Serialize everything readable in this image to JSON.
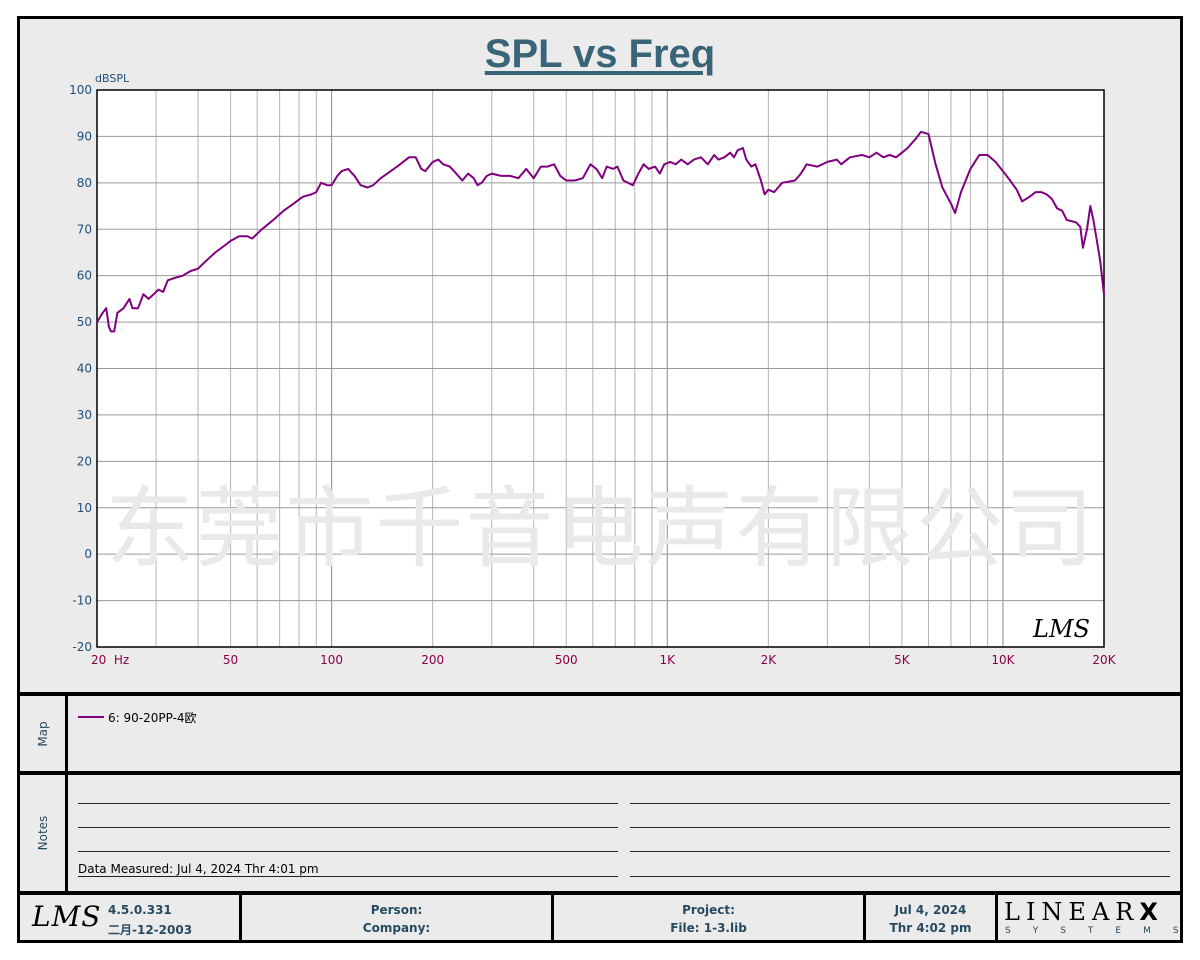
{
  "chart_data": {
    "type": "line",
    "title": "SPL vs Freq",
    "ylabel": "dBSPL",
    "xscale": "log",
    "xlim": [
      20,
      20000
    ],
    "ylim": [
      -20,
      100
    ],
    "grid": true,
    "y_ticks": [
      "100",
      "90",
      "80",
      "70",
      "60",
      "50",
      "40",
      "30",
      "20",
      "10",
      "0",
      "-10",
      "-20"
    ],
    "x_ticks": [
      {
        "f": 20,
        "label": "20  Hz"
      },
      {
        "f": 50,
        "label": "50"
      },
      {
        "f": 100,
        "label": "100"
      },
      {
        "f": 200,
        "label": "200"
      },
      {
        "f": 500,
        "label": "500"
      },
      {
        "f": 1000,
        "label": "1K"
      },
      {
        "f": 2000,
        "label": "2K"
      },
      {
        "f": 5000,
        "label": "5K"
      },
      {
        "f": 10000,
        "label": "10K"
      },
      {
        "f": 20000,
        "label": "20K"
      }
    ],
    "series": [
      {
        "name": "6: 90-20PP-4欧",
        "color": "#800080",
        "points": [
          [
            20,
            50
          ],
          [
            20.8,
            52
          ],
          [
            21.3,
            53
          ],
          [
            21.7,
            49
          ],
          [
            22,
            48
          ],
          [
            22.5,
            48
          ],
          [
            23,
            52
          ],
          [
            24,
            53
          ],
          [
            25,
            55
          ],
          [
            25.5,
            53
          ],
          [
            26.5,
            53
          ],
          [
            27.5,
            56
          ],
          [
            28.5,
            55
          ],
          [
            29.5,
            56
          ],
          [
            30.5,
            57
          ],
          [
            31.5,
            56.5
          ],
          [
            32.5,
            59
          ],
          [
            34,
            59.5
          ],
          [
            36,
            60
          ],
          [
            38,
            61
          ],
          [
            40,
            61.5
          ],
          [
            42,
            63
          ],
          [
            45,
            65
          ],
          [
            48,
            66.5
          ],
          [
            50,
            67.5
          ],
          [
            53,
            68.5
          ],
          [
            56,
            68.5
          ],
          [
            58,
            68
          ],
          [
            62,
            70
          ],
          [
            67,
            72
          ],
          [
            72,
            74
          ],
          [
            77,
            75.5
          ],
          [
            82,
            77
          ],
          [
            87,
            77.5
          ],
          [
            90,
            78
          ],
          [
            93,
            80
          ],
          [
            97,
            79.5
          ],
          [
            100,
            79.5
          ],
          [
            104,
            81.5
          ],
          [
            107,
            82.5
          ],
          [
            112,
            83
          ],
          [
            117,
            81.5
          ],
          [
            122,
            79.5
          ],
          [
            128,
            79
          ],
          [
            133,
            79.5
          ],
          [
            140,
            81
          ],
          [
            150,
            82.5
          ],
          [
            160,
            84
          ],
          [
            170,
            85.5
          ],
          [
            178,
            85.5
          ],
          [
            185,
            83
          ],
          [
            190,
            82.5
          ],
          [
            200,
            84.5
          ],
          [
            208,
            85
          ],
          [
            215,
            84
          ],
          [
            225,
            83.5
          ],
          [
            235,
            82
          ],
          [
            245,
            80.5
          ],
          [
            255,
            82
          ],
          [
            265,
            81
          ],
          [
            272,
            79.5
          ],
          [
            280,
            80
          ],
          [
            290,
            81.5
          ],
          [
            300,
            82
          ],
          [
            320,
            81.5
          ],
          [
            340,
            81.5
          ],
          [
            360,
            81
          ],
          [
            380,
            83
          ],
          [
            400,
            81
          ],
          [
            420,
            83.5
          ],
          [
            440,
            83.5
          ],
          [
            460,
            84
          ],
          [
            480,
            81.5
          ],
          [
            500,
            80.5
          ],
          [
            530,
            80.5
          ],
          [
            560,
            81
          ],
          [
            590,
            84
          ],
          [
            615,
            83
          ],
          [
            640,
            81
          ],
          [
            660,
            83.5
          ],
          [
            690,
            83
          ],
          [
            710,
            83.5
          ],
          [
            740,
            80.5
          ],
          [
            790,
            79.5
          ],
          [
            820,
            82
          ],
          [
            850,
            84
          ],
          [
            880,
            83
          ],
          [
            920,
            83.5
          ],
          [
            950,
            82
          ],
          [
            980,
            84
          ],
          [
            1020,
            84.5
          ],
          [
            1060,
            84
          ],
          [
            1100,
            85
          ],
          [
            1150,
            84
          ],
          [
            1200,
            85
          ],
          [
            1260,
            85.5
          ],
          [
            1320,
            84
          ],
          [
            1380,
            86
          ],
          [
            1420,
            85
          ],
          [
            1480,
            85.5
          ],
          [
            1540,
            86.5
          ],
          [
            1580,
            85.5
          ],
          [
            1620,
            87
          ],
          [
            1680,
            87.5
          ],
          [
            1720,
            85
          ],
          [
            1780,
            83.5
          ],
          [
            1830,
            84
          ],
          [
            1900,
            80.5
          ],
          [
            1950,
            77.5
          ],
          [
            2000,
            78.5
          ],
          [
            2080,
            78
          ],
          [
            2200,
            80
          ],
          [
            2400,
            80.5
          ],
          [
            2500,
            82
          ],
          [
            2600,
            84
          ],
          [
            2800,
            83.5
          ],
          [
            3000,
            84.5
          ],
          [
            3200,
            85
          ],
          [
            3300,
            84
          ],
          [
            3500,
            85.5
          ],
          [
            3800,
            86
          ],
          [
            4000,
            85.5
          ],
          [
            4200,
            86.5
          ],
          [
            4400,
            85.5
          ],
          [
            4600,
            86
          ],
          [
            4800,
            85.5
          ],
          [
            5000,
            86.5
          ],
          [
            5200,
            87.5
          ],
          [
            5500,
            89.5
          ],
          [
            5700,
            91
          ],
          [
            6000,
            90.5
          ],
          [
            6300,
            84
          ],
          [
            6600,
            79
          ],
          [
            7000,
            75.5
          ],
          [
            7200,
            73.5
          ],
          [
            7500,
            78
          ],
          [
            8000,
            83
          ],
          [
            8500,
            86
          ],
          [
            9000,
            86
          ],
          [
            9500,
            84.5
          ],
          [
            10000,
            82.5
          ],
          [
            10500,
            80.5
          ],
          [
            11000,
            78.5
          ],
          [
            11400,
            76
          ],
          [
            12000,
            77
          ],
          [
            12500,
            78
          ],
          [
            13000,
            78
          ],
          [
            13500,
            77.5
          ],
          [
            14000,
            76.5
          ],
          [
            14500,
            74.5
          ],
          [
            15000,
            74
          ],
          [
            15500,
            72
          ],
          [
            16500,
            71.5
          ],
          [
            17000,
            70.5
          ],
          [
            17300,
            66
          ],
          [
            17800,
            70
          ],
          [
            18200,
            75
          ],
          [
            18600,
            72
          ],
          [
            19000,
            68
          ],
          [
            19500,
            63
          ],
          [
            20000,
            56
          ]
        ]
      }
    ]
  },
  "watermark": "东莞市千音电声有限公司",
  "plot_logo": "LMS",
  "map_panel": {
    "label": "Map",
    "legend_entry": "6: 90-20PP-4欧",
    "legend_color": "#800080"
  },
  "notes_panel": {
    "label": "Notes",
    "measured_text": "Data Measured: Jul  4, 2024  Thr  4:01 pm"
  },
  "footer": {
    "logo": "LMS",
    "version": "4.5.0.331",
    "version_date": "二月-12-2003",
    "person_label": "Person:",
    "company_label": "Company:",
    "project_label": "Project:",
    "file_label": "File: 1-3.lib",
    "date": "Jul  4, 2024",
    "day_time": "Thr  4:02 pm",
    "brand": "LINEAR",
    "brand_x": "X",
    "brand_sub": "SYSTEMS"
  }
}
